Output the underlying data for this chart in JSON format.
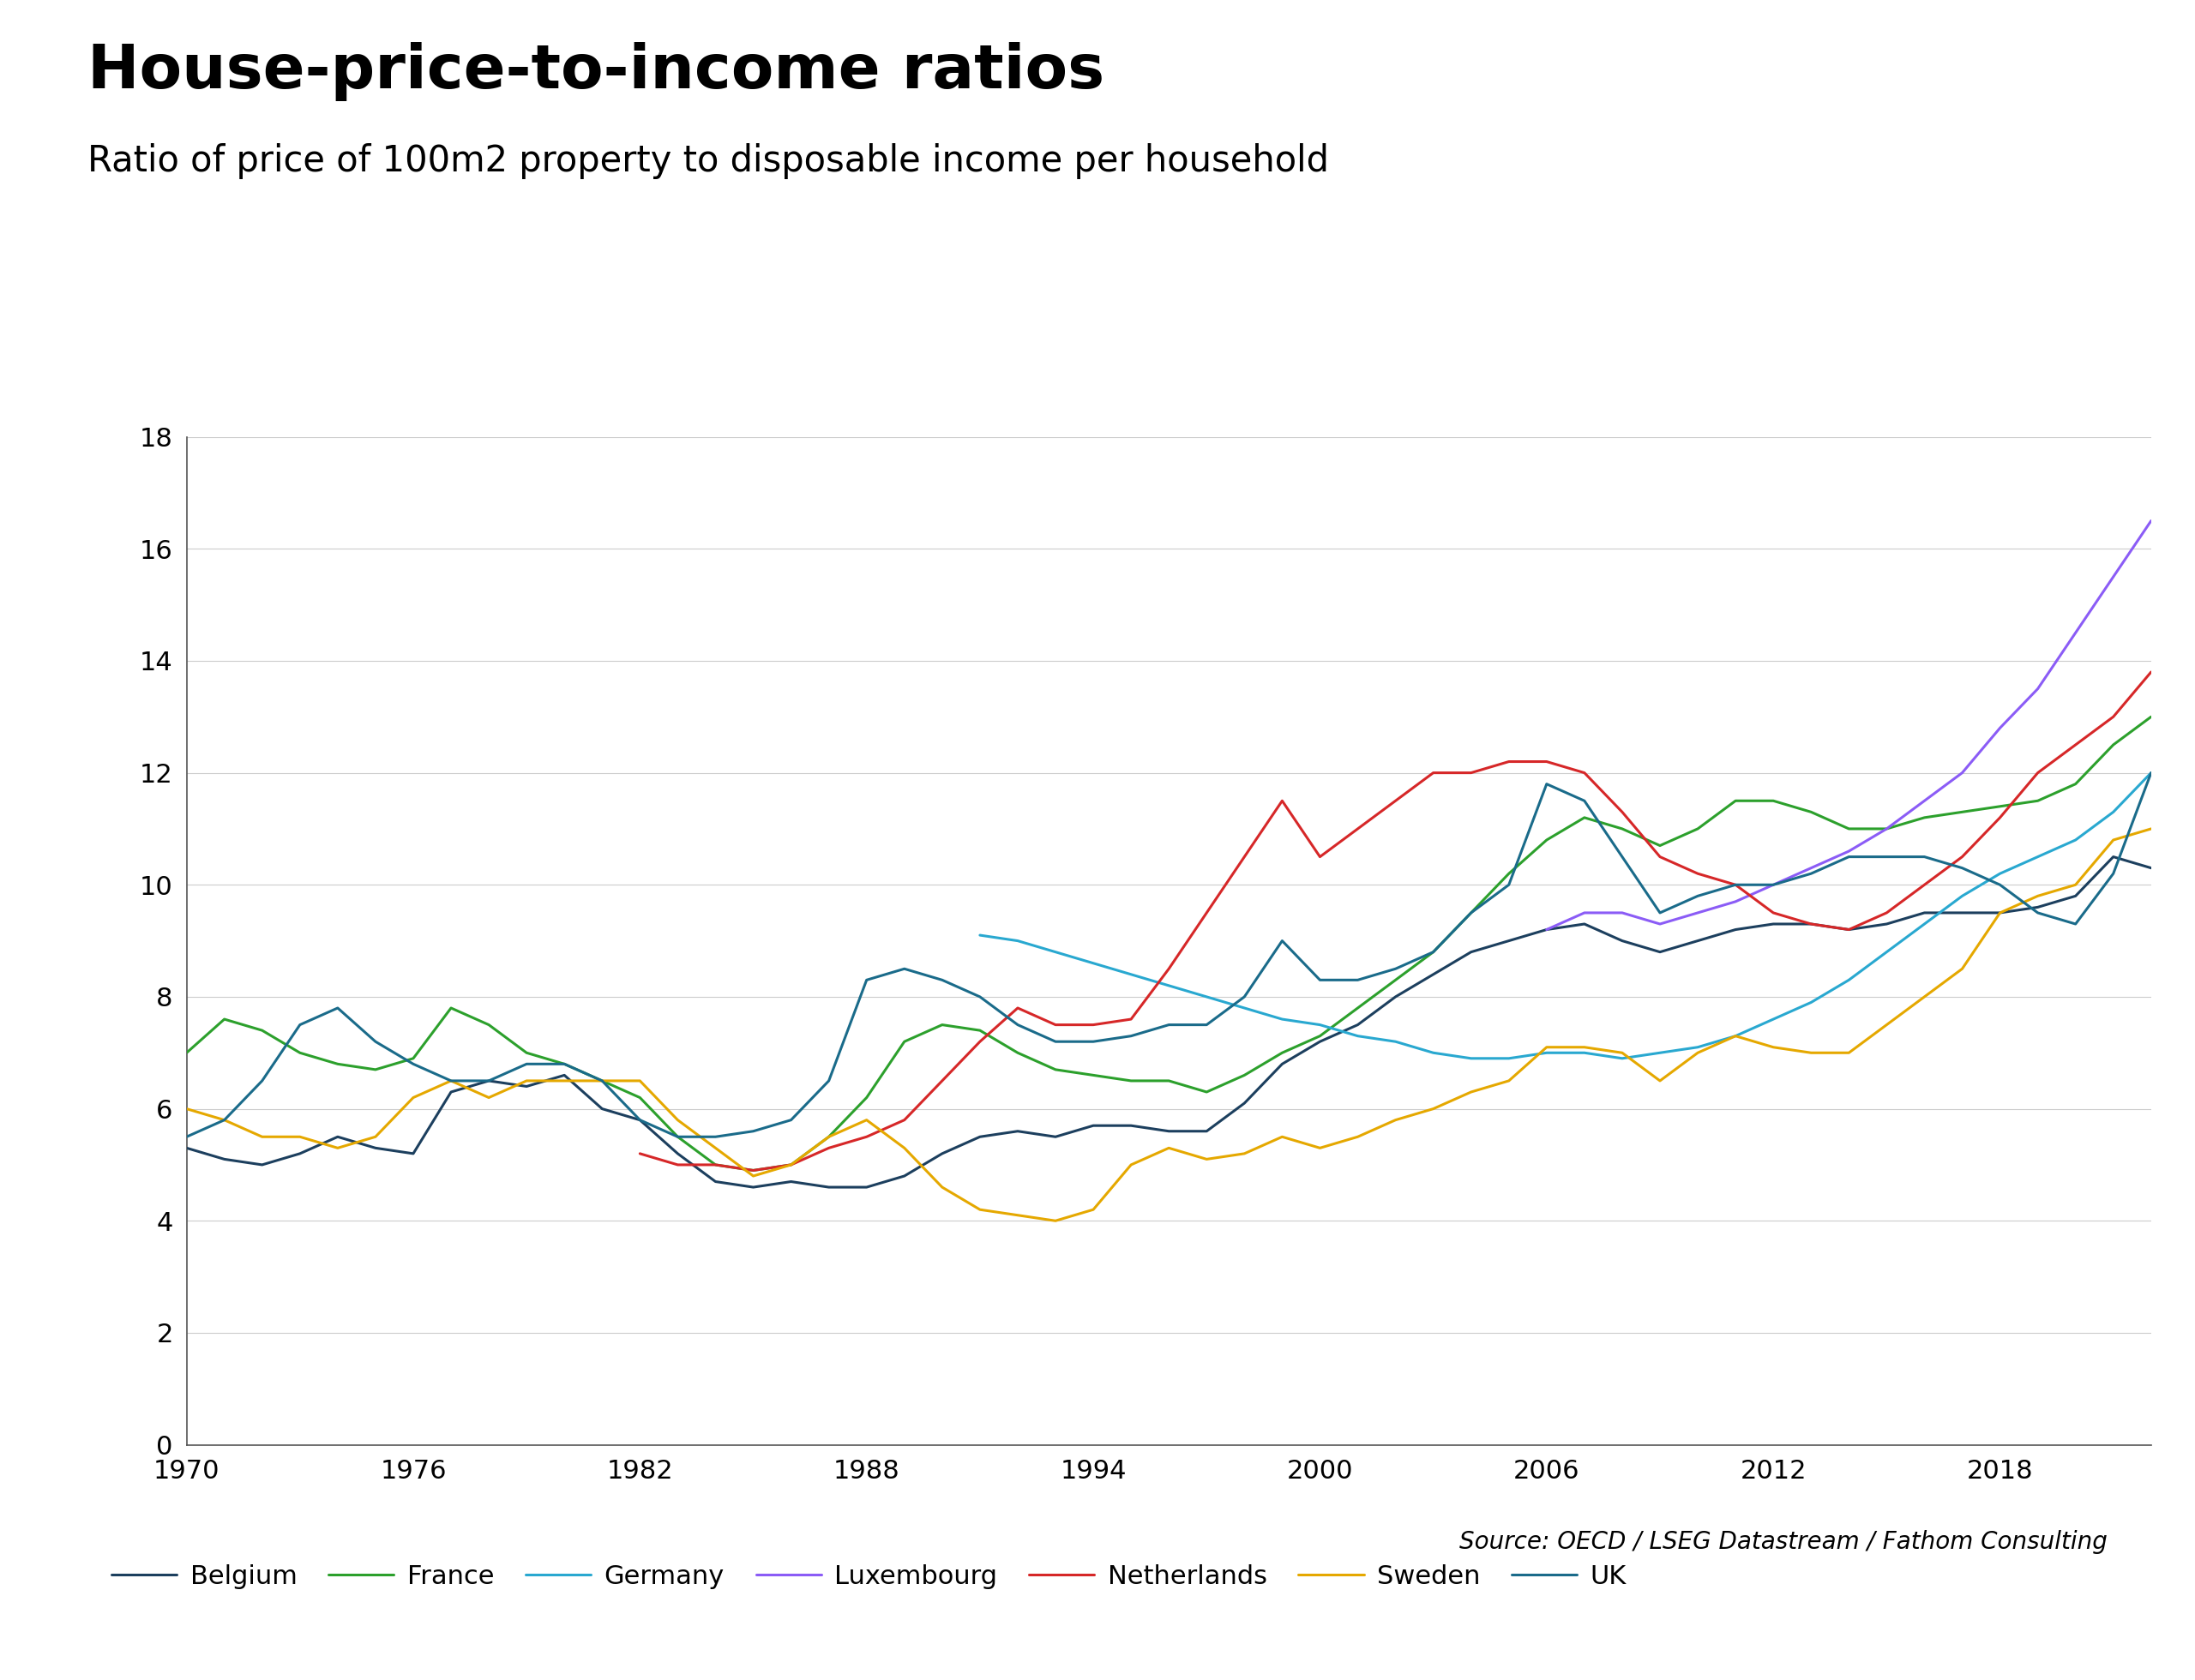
{
  "title": "House-price-to-income ratios",
  "subtitle": "Ratio of price of 100m2 property to disposable income per household",
  "source": "Source: OECD / LSEG Datastream / Fathom Consulting",
  "ylim": [
    0,
    18
  ],
  "yticks": [
    0,
    2,
    4,
    6,
    8,
    10,
    12,
    14,
    16,
    18
  ],
  "xlim": [
    1970,
    2022
  ],
  "xticks": [
    1970,
    1976,
    1982,
    1988,
    1994,
    2000,
    2006,
    2012,
    2018
  ],
  "series": {
    "Belgium": {
      "color": "#1c3f5e",
      "years": [
        1970,
        1971,
        1972,
        1973,
        1974,
        1975,
        1976,
        1977,
        1978,
        1979,
        1980,
        1981,
        1982,
        1983,
        1984,
        1985,
        1986,
        1987,
        1988,
        1989,
        1990,
        1991,
        1992,
        1993,
        1994,
        1995,
        1996,
        1997,
        1998,
        1999,
        2000,
        2001,
        2002,
        2003,
        2004,
        2005,
        2006,
        2007,
        2008,
        2009,
        2010,
        2011,
        2012,
        2013,
        2014,
        2015,
        2016,
        2017,
        2018,
        2019,
        2020,
        2021,
        2022
      ],
      "values": [
        5.3,
        5.1,
        5.0,
        5.2,
        5.5,
        5.3,
        5.2,
        6.3,
        6.5,
        6.4,
        6.6,
        6.0,
        5.8,
        5.2,
        4.7,
        4.6,
        4.7,
        4.6,
        4.6,
        4.8,
        5.2,
        5.5,
        5.6,
        5.5,
        5.7,
        5.7,
        5.6,
        5.6,
        6.1,
        6.8,
        7.2,
        7.5,
        8.0,
        8.4,
        8.8,
        9.0,
        9.2,
        9.3,
        9.0,
        8.8,
        9.0,
        9.2,
        9.3,
        9.3,
        9.2,
        9.3,
        9.5,
        9.5,
        9.5,
        9.6,
        9.8,
        10.5,
        10.3
      ]
    },
    "France": {
      "color": "#2ca02c",
      "years": [
        1970,
        1971,
        1972,
        1973,
        1974,
        1975,
        1976,
        1977,
        1978,
        1979,
        1980,
        1981,
        1982,
        1983,
        1984,
        1985,
        1986,
        1987,
        1988,
        1989,
        1990,
        1991,
        1992,
        1993,
        1994,
        1995,
        1996,
        1997,
        1998,
        1999,
        2000,
        2001,
        2002,
        2003,
        2004,
        2005,
        2006,
        2007,
        2008,
        2009,
        2010,
        2011,
        2012,
        2013,
        2014,
        2015,
        2016,
        2017,
        2018,
        2019,
        2020,
        2021,
        2022
      ],
      "values": [
        7.0,
        7.6,
        7.4,
        7.0,
        6.8,
        6.7,
        6.9,
        7.8,
        7.5,
        7.0,
        6.8,
        6.5,
        6.2,
        5.5,
        5.0,
        4.9,
        5.0,
        5.5,
        6.2,
        7.2,
        7.5,
        7.4,
        7.0,
        6.7,
        6.6,
        6.5,
        6.5,
        6.3,
        6.6,
        7.0,
        7.3,
        7.8,
        8.3,
        8.8,
        9.5,
        10.2,
        10.8,
        11.2,
        11.0,
        10.7,
        11.0,
        11.5,
        11.5,
        11.3,
        11.0,
        11.0,
        11.2,
        11.3,
        11.4,
        11.5,
        11.8,
        12.5,
        13.0
      ]
    },
    "Germany": {
      "color": "#29a8d0",
      "years": [
        1991,
        1992,
        1993,
        1994,
        1995,
        1996,
        1997,
        1998,
        1999,
        2000,
        2001,
        2002,
        2003,
        2004,
        2005,
        2006,
        2007,
        2008,
        2009,
        2010,
        2011,
        2012,
        2013,
        2014,
        2015,
        2016,
        2017,
        2018,
        2019,
        2020,
        2021,
        2022
      ],
      "values": [
        9.1,
        9.0,
        8.8,
        8.6,
        8.4,
        8.2,
        8.0,
        7.8,
        7.6,
        7.5,
        7.3,
        7.2,
        7.0,
        6.9,
        6.9,
        7.0,
        7.0,
        6.9,
        7.0,
        7.1,
        7.3,
        7.6,
        7.9,
        8.3,
        8.8,
        9.3,
        9.8,
        10.2,
        10.5,
        10.8,
        11.3,
        12.0
      ]
    },
    "Luxembourg": {
      "color": "#8B5CF6",
      "years": [
        2006,
        2007,
        2008,
        2009,
        2010,
        2011,
        2012,
        2013,
        2014,
        2015,
        2016,
        2017,
        2018,
        2019,
        2020,
        2021,
        2022
      ],
      "values": [
        9.2,
        9.5,
        9.5,
        9.3,
        9.5,
        9.7,
        10.0,
        10.3,
        10.6,
        11.0,
        11.5,
        12.0,
        12.8,
        13.5,
        14.5,
        15.5,
        16.5
      ]
    },
    "Netherlands": {
      "color": "#d62728",
      "years": [
        1982,
        1983,
        1984,
        1985,
        1986,
        1987,
        1988,
        1989,
        1990,
        1991,
        1992,
        1993,
        1994,
        1995,
        1996,
        1997,
        1998,
        1999,
        2000,
        2001,
        2002,
        2003,
        2004,
        2005,
        2006,
        2007,
        2008,
        2009,
        2010,
        2011,
        2012,
        2013,
        2014,
        2015,
        2016,
        2017,
        2018,
        2019,
        2020,
        2021,
        2022
      ],
      "values": [
        5.2,
        5.0,
        5.0,
        4.9,
        5.0,
        5.3,
        5.5,
        5.8,
        6.5,
        7.2,
        7.8,
        7.5,
        7.5,
        7.6,
        8.5,
        9.5,
        10.5,
        11.5,
        10.5,
        11.0,
        11.5,
        12.0,
        12.0,
        12.2,
        12.2,
        12.0,
        11.3,
        10.5,
        10.2,
        10.0,
        9.5,
        9.3,
        9.2,
        9.5,
        10.0,
        10.5,
        11.2,
        12.0,
        12.5,
        13.0,
        13.8
      ]
    },
    "Sweden": {
      "color": "#e5a800",
      "years": [
        1970,
        1971,
        1972,
        1973,
        1974,
        1975,
        1976,
        1977,
        1978,
        1979,
        1980,
        1981,
        1982,
        1983,
        1984,
        1985,
        1986,
        1987,
        1988,
        1989,
        1990,
        1991,
        1992,
        1993,
        1994,
        1995,
        1996,
        1997,
        1998,
        1999,
        2000,
        2001,
        2002,
        2003,
        2004,
        2005,
        2006,
        2007,
        2008,
        2009,
        2010,
        2011,
        2012,
        2013,
        2014,
        2015,
        2016,
        2017,
        2018,
        2019,
        2020,
        2021,
        2022
      ],
      "values": [
        6.0,
        5.8,
        5.5,
        5.5,
        5.3,
        5.5,
        6.2,
        6.5,
        6.2,
        6.5,
        6.5,
        6.5,
        6.5,
        5.8,
        5.3,
        4.8,
        5.0,
        5.5,
        5.8,
        5.3,
        4.6,
        4.2,
        4.1,
        4.0,
        4.2,
        5.0,
        5.3,
        5.1,
        5.2,
        5.5,
        5.3,
        5.5,
        5.8,
        6.0,
        6.3,
        6.5,
        7.1,
        7.1,
        7.0,
        6.5,
        7.0,
        7.3,
        7.1,
        7.0,
        7.0,
        7.5,
        8.0,
        8.5,
        9.5,
        9.8,
        10.0,
        10.8,
        11.0
      ]
    },
    "UK": {
      "color": "#1a6b8a",
      "years": [
        1970,
        1971,
        1972,
        1973,
        1974,
        1975,
        1976,
        1977,
        1978,
        1979,
        1980,
        1981,
        1982,
        1983,
        1984,
        1985,
        1986,
        1987,
        1988,
        1989,
        1990,
        1991,
        1992,
        1993,
        1994,
        1995,
        1996,
        1997,
        1998,
        1999,
        2000,
        2001,
        2002,
        2003,
        2004,
        2005,
        2006,
        2007,
        2008,
        2009,
        2010,
        2011,
        2012,
        2013,
        2014,
        2015,
        2016,
        2017,
        2018,
        2019,
        2020,
        2021,
        2022
      ],
      "values": [
        5.5,
        5.8,
        6.5,
        7.5,
        7.8,
        7.2,
        6.8,
        6.5,
        6.5,
        6.8,
        6.8,
        6.5,
        5.8,
        5.5,
        5.5,
        5.6,
        5.8,
        6.5,
        8.3,
        8.5,
        8.3,
        8.0,
        7.5,
        7.2,
        7.2,
        7.3,
        7.5,
        7.5,
        8.0,
        9.0,
        8.3,
        8.3,
        8.5,
        8.8,
        9.5,
        10.0,
        11.8,
        11.5,
        10.5,
        9.5,
        9.8,
        10.0,
        10.0,
        10.2,
        10.5,
        10.5,
        10.5,
        10.3,
        10.0,
        9.5,
        9.3,
        10.2,
        12.0
      ]
    }
  }
}
